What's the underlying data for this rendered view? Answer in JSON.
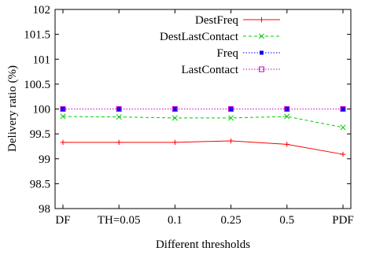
{
  "chart_data": {
    "type": "line",
    "title": "",
    "xlabel": "Different thresholds",
    "ylabel": "Delivery ratio (%)",
    "categories": [
      "DF",
      "TH=0.05",
      "0.1",
      "0.25",
      "0.5",
      "PDF"
    ],
    "ylim": [
      98,
      102
    ],
    "yticks": [
      "98",
      "98.5",
      "99",
      "99.5",
      "100",
      "100.5",
      "101",
      "101.5",
      "102"
    ],
    "grid": false,
    "legend_position": "top-right",
    "series": [
      {
        "name": "DestFreq",
        "color": "#ff0000",
        "dash": "solid",
        "marker": "plus",
        "values": [
          99.33,
          99.33,
          99.33,
          99.36,
          99.29,
          99.09
        ]
      },
      {
        "name": "DestLastContact",
        "color": "#00cc00",
        "dash": "dashed",
        "marker": "x",
        "values": [
          99.85,
          99.84,
          99.82,
          99.82,
          99.85,
          99.63
        ]
      },
      {
        "name": "Freq",
        "color": "#0000ff",
        "dash": "dotted",
        "marker": "filled-square",
        "values": [
          100.0,
          100.0,
          100.0,
          100.0,
          100.0,
          100.0
        ]
      },
      {
        "name": "LastContact",
        "color": "#cc00cc",
        "dash": "dotted",
        "marker": "open-square",
        "values": [
          100.0,
          100.0,
          100.0,
          100.0,
          100.0,
          100.0
        ]
      }
    ]
  }
}
